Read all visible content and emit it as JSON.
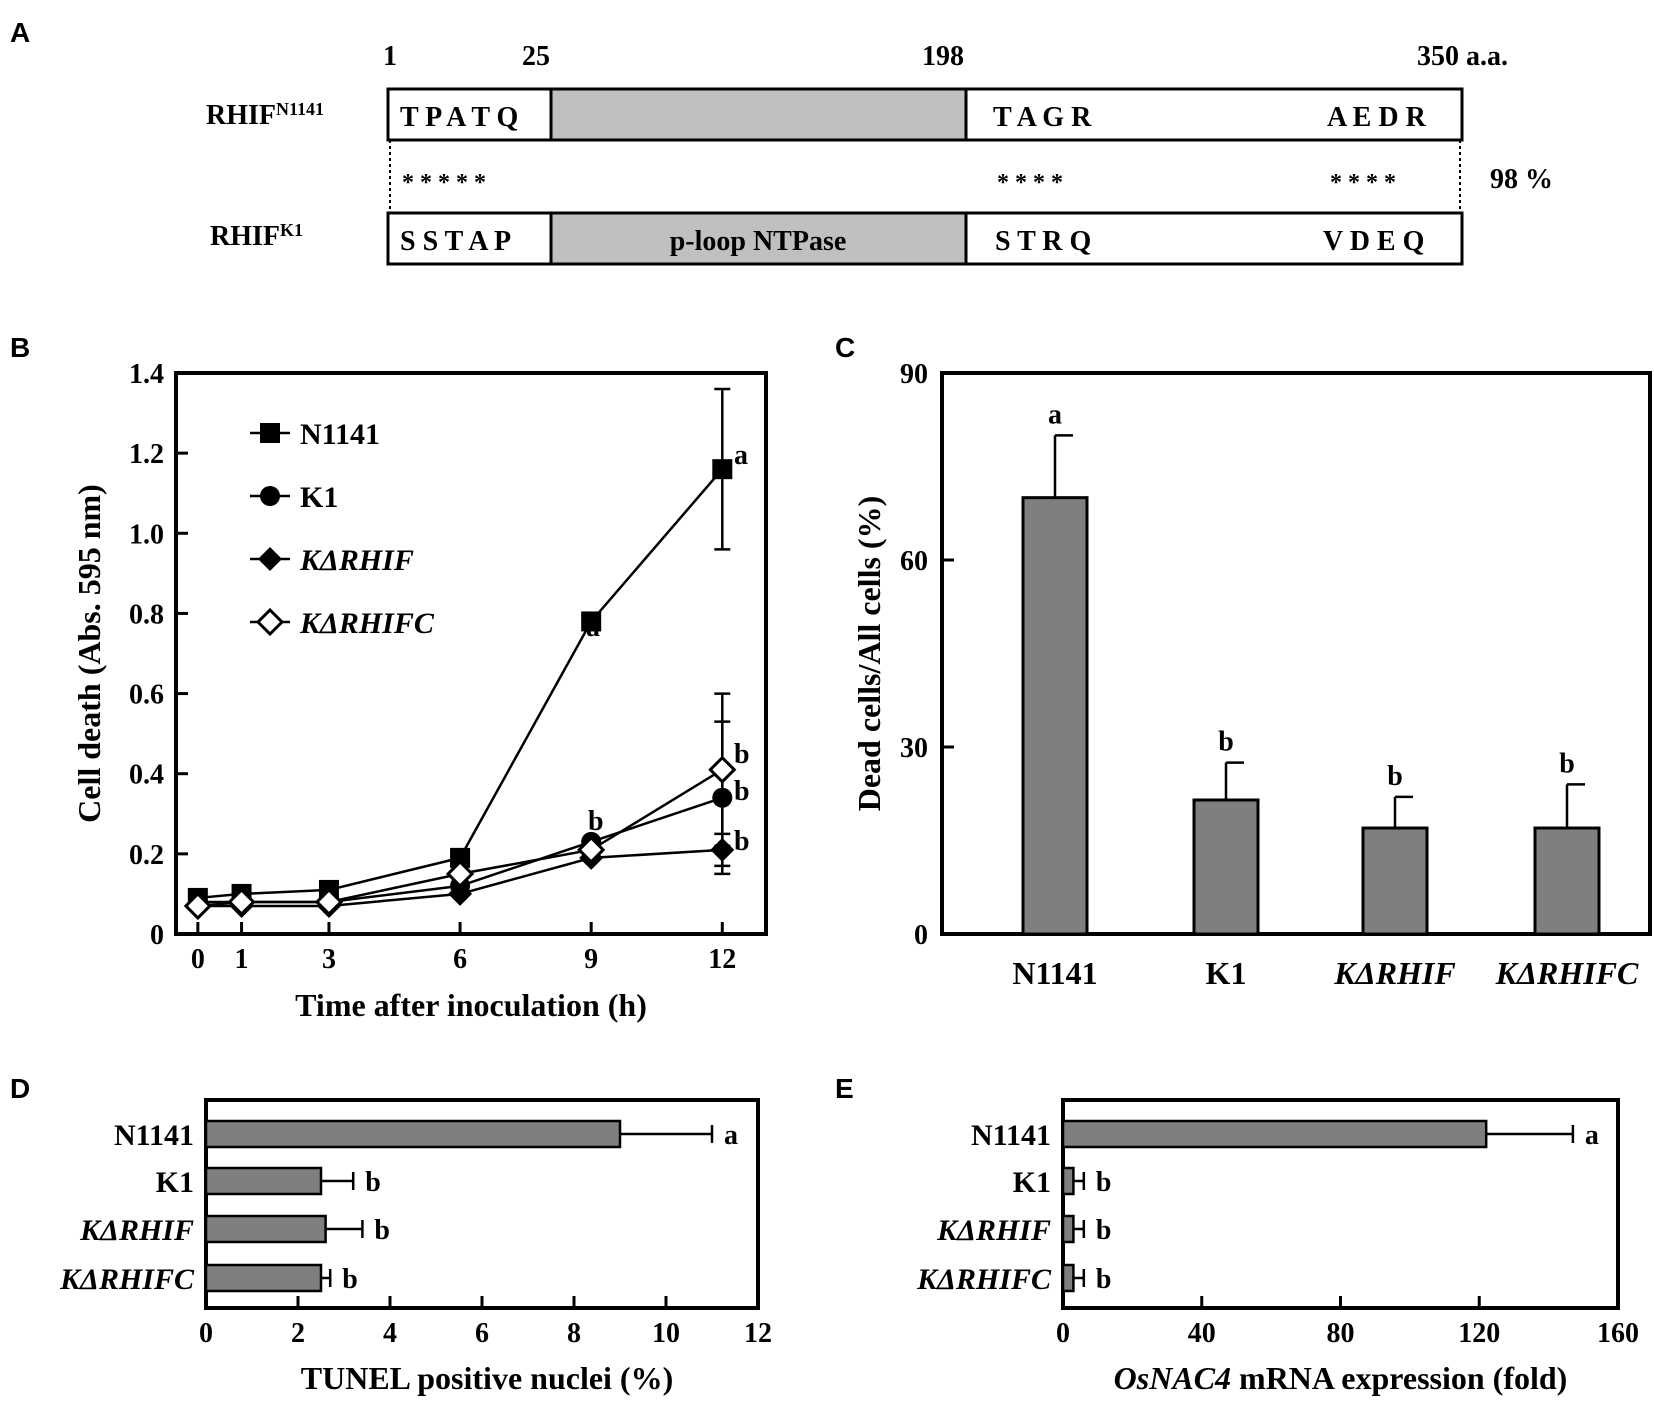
{
  "panel_labels": {
    "a": "A",
    "b": "B",
    "c": "C",
    "d": "D",
    "e": "E"
  },
  "domain_diagram": {
    "positions": [
      "1",
      "25",
      "198",
      "350 a.a."
    ],
    "strain1": {
      "name": "RHIF",
      "sup": "N1141",
      "left": "T P A T Q",
      "mid": "T A G R",
      "right": "A E D R"
    },
    "strain2": {
      "name": "RHIF",
      "sup": "K1",
      "left": "S S T A  P",
      "domain": "p-loop NTPase",
      "mid": "S T R Q",
      "right": "V D E Q"
    },
    "stars_left": "* * * *  *",
    "stars_mid": "* * * *",
    "stars_right": "* * * *",
    "identity": "98 %",
    "colors": {
      "domain_fill": "#c0c0c0",
      "border": "#000000"
    }
  },
  "chart_data": [
    {
      "panel": "B",
      "type": "line",
      "xlabel": "Time after inoculation (h)",
      "ylabel": "Cell death (Abs. 595 nm)",
      "x": [
        0,
        1,
        3,
        6,
        9,
        12
      ],
      "xticks": [
        "0",
        "1",
        "3",
        "6",
        "9",
        "12"
      ],
      "yticks": [
        "0",
        "0.2",
        "0.4",
        "0.6",
        "0.8",
        "1.0",
        "1.2",
        "1.4"
      ],
      "xlim": [
        -0.5,
        13
      ],
      "ylim": [
        0,
        1.4
      ],
      "series": [
        {
          "name": "N1141",
          "italic": false,
          "marker": "square",
          "values": [
            0.09,
            0.1,
            0.11,
            0.19,
            0.78,
            1.16
          ],
          "err12": 0.2,
          "labels": {
            "9": "a",
            "12": "a"
          }
        },
        {
          "name": "K1",
          "italic": false,
          "marker": "circle",
          "values": [
            0.08,
            0.08,
            0.08,
            0.12,
            0.23,
            0.34
          ],
          "err12": 0.19,
          "labels": {
            "12": "b"
          }
        },
        {
          "name": "KΔRHIF",
          "italic": true,
          "marker": "diamond",
          "values": [
            0.07,
            0.07,
            0.07,
            0.1,
            0.19,
            0.21
          ],
          "err12": 0.04,
          "labels": {
            "12": "b"
          }
        },
        {
          "name": "KΔRHIFC",
          "italic": true,
          "marker": "diamond-open",
          "values": [
            0.07,
            0.08,
            0.08,
            0.15,
            0.21,
            0.41
          ],
          "err12": 0.19,
          "labels": {
            "12": "b",
            "9": "b"
          }
        }
      ]
    },
    {
      "panel": "C",
      "type": "bar",
      "ylabel": "Dead cells/All cells (%)",
      "categories": [
        "N1141",
        "K1",
        "KΔRHIF",
        "KΔRHIFC"
      ],
      "italic": [
        false,
        false,
        true,
        true
      ],
      "values": [
        70,
        21.5,
        17,
        17
      ],
      "errors": [
        10,
        6,
        5,
        7
      ],
      "letters": [
        "a",
        "b",
        "b",
        "b"
      ],
      "yticks": [
        "0",
        "30",
        "60",
        "90"
      ],
      "ylim": [
        0,
        90
      ]
    },
    {
      "panel": "D",
      "type": "bar",
      "orientation": "horizontal",
      "xlabel": "TUNEL positive nuclei (%)",
      "categories": [
        "N1141",
        "K1",
        "KΔRHIF",
        "KΔRHIFC"
      ],
      "italic": [
        false,
        false,
        true,
        true
      ],
      "values": [
        9.0,
        2.5,
        2.6,
        2.5
      ],
      "errors": [
        2.0,
        0.7,
        0.8,
        0.2
      ],
      "letters": [
        "a",
        "b",
        "b",
        "b"
      ],
      "xticks": [
        "0",
        "2",
        "4",
        "6",
        "8",
        "10",
        "12"
      ],
      "xlim": [
        0,
        12
      ]
    },
    {
      "panel": "E",
      "type": "bar",
      "orientation": "horizontal",
      "xlabel_italic": "OsNAC4",
      "xlabel_rest": " mRNA expression (fold)",
      "categories": [
        "N1141",
        "K1",
        "KΔRHIF",
        "KΔRHIFC"
      ],
      "italic": [
        false,
        false,
        true,
        true
      ],
      "values": [
        122,
        3,
        3,
        3
      ],
      "errors": [
        25,
        3,
        3,
        3
      ],
      "letters": [
        "a",
        "b",
        "b",
        "b"
      ],
      "xticks": [
        "0",
        "40",
        "80",
        "120",
        "160"
      ],
      "xlim": [
        0,
        160
      ]
    }
  ],
  "colors": {
    "bar": "#7f7f7f",
    "axis": "#000000"
  }
}
